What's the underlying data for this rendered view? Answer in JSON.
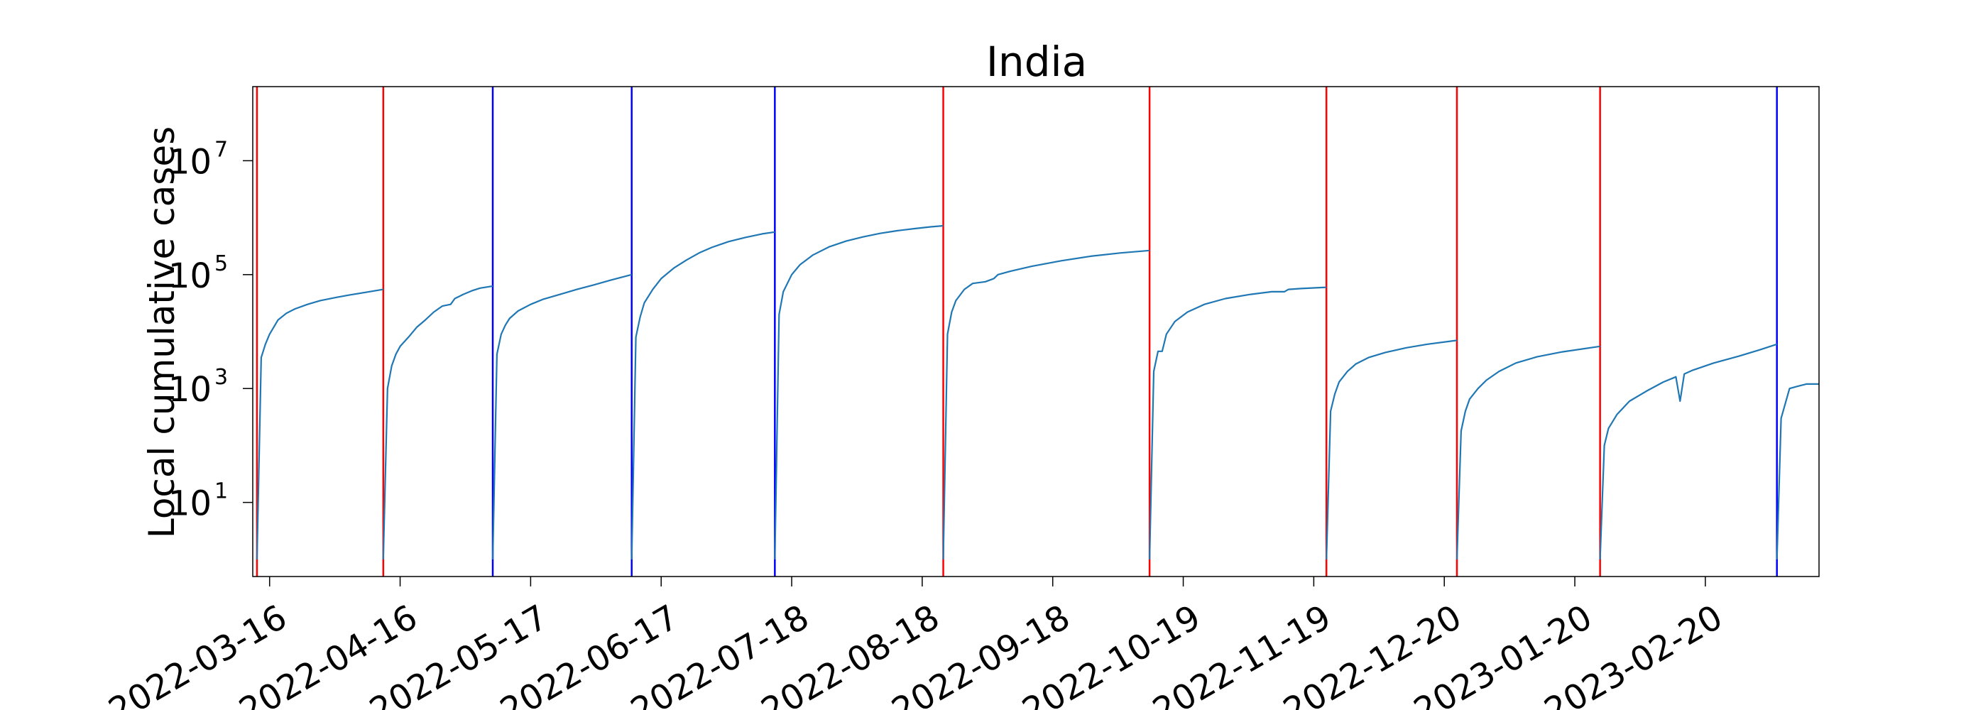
{
  "chart_data": {
    "type": "line",
    "title": "India",
    "xlabel": "",
    "ylabel": "Local cumulative cases",
    "y_scale": "log",
    "ylim": [
      0.5,
      200000000
    ],
    "xlim": [
      "2022-03-12",
      "2023-03-19"
    ],
    "grid": false,
    "legend": "none",
    "y_ticks": [
      {
        "value": 10,
        "base": "10",
        "exp": "1"
      },
      {
        "value": 1000,
        "base": "10",
        "exp": "3"
      },
      {
        "value": 100000,
        "base": "10",
        "exp": "5"
      },
      {
        "value": 10000000,
        "base": "10",
        "exp": "7"
      }
    ],
    "x_ticks": [
      "2022-03-16",
      "2022-04-16",
      "2022-05-17",
      "2022-06-17",
      "2022-07-18",
      "2022-08-18",
      "2022-09-18",
      "2022-10-19",
      "2022-11-19",
      "2022-12-20",
      "2023-01-20",
      "2023-02-20"
    ],
    "colors": {
      "line": "#1f77b4",
      "red": "#ff0000",
      "blue": "#0000ff",
      "axis": "#000000"
    },
    "vertical_lines": [
      {
        "date": "2022-03-13",
        "color": "#ff0000"
      },
      {
        "date": "2022-04-12",
        "color": "#ff0000"
      },
      {
        "date": "2022-05-08",
        "color": "#0000ff"
      },
      {
        "date": "2022-06-10",
        "color": "#0000ff"
      },
      {
        "date": "2022-07-14",
        "color": "#0000ff"
      },
      {
        "date": "2022-08-23",
        "color": "#ff0000"
      },
      {
        "date": "2022-10-11",
        "color": "#ff0000"
      },
      {
        "date": "2022-11-22",
        "color": "#ff0000"
      },
      {
        "date": "2022-12-23",
        "color": "#ff0000"
      },
      {
        "date": "2023-01-26",
        "color": "#ff0000"
      },
      {
        "date": "2023-03-09",
        "color": "#0000ff"
      }
    ],
    "series": [
      {
        "segments": [
          {
            "x": [
              "2022-03-12",
              "2022-03-12"
            ],
            "y": [
              300000,
              300000
            ]
          },
          {
            "x": [
              "2022-03-13",
              "2022-03-14",
              "2022-03-15",
              "2022-03-16",
              "2022-03-17",
              "2022-03-18",
              "2022-03-20",
              "2022-03-22",
              "2022-03-25",
              "2022-03-28",
              "2022-04-01",
              "2022-04-04",
              "2022-04-08",
              "2022-04-12"
            ],
            "y": [
              1,
              3500,
              6000,
              9000,
              12000,
              16000,
              21000,
              25000,
              30000,
              35000,
              40000,
              44000,
              49000,
              55000
            ]
          },
          {
            "x": [
              "2022-04-12",
              "2022-04-13",
              "2022-04-14",
              "2022-04-15",
              "2022-04-16",
              "2022-04-18",
              "2022-04-20",
              "2022-04-22",
              "2022-04-24",
              "2022-04-26",
              "2022-04-28",
              "2022-04-29",
              "2022-05-01",
              "2022-05-03",
              "2022-05-05",
              "2022-05-08"
            ],
            "y": [
              1,
              1000,
              2500,
              4000,
              5500,
              8000,
              12000,
              16000,
              22000,
              28000,
              30000,
              38000,
              45000,
              52000,
              58000,
              63000
            ]
          },
          {
            "x": [
              "2022-05-08",
              "2022-05-09",
              "2022-05-10",
              "2022-05-11",
              "2022-05-12",
              "2022-05-14",
              "2022-05-17",
              "2022-05-20",
              "2022-05-24",
              "2022-05-28",
              "2022-06-01",
              "2022-06-05",
              "2022-06-10"
            ],
            "y": [
              1,
              4000,
              9000,
              13000,
              17000,
              23000,
              30000,
              37000,
              45000,
              55000,
              66000,
              80000,
              100000
            ]
          },
          {
            "x": [
              "2022-06-10",
              "2022-06-11",
              "2022-06-12",
              "2022-06-13",
              "2022-06-15",
              "2022-06-17",
              "2022-06-20",
              "2022-06-23",
              "2022-06-26",
              "2022-06-29",
              "2022-07-03",
              "2022-07-07",
              "2022-07-11",
              "2022-07-14"
            ],
            "y": [
              1,
              8000,
              18000,
              32000,
              55000,
              85000,
              130000,
              180000,
              240000,
              300000,
              380000,
              450000,
              520000,
              560000
            ]
          },
          {
            "x": [
              "2022-07-14",
              "2022-07-15",
              "2022-07-16",
              "2022-07-18",
              "2022-07-20",
              "2022-07-23",
              "2022-07-27",
              "2022-07-31",
              "2022-08-04",
              "2022-08-08",
              "2022-08-12",
              "2022-08-16",
              "2022-08-20",
              "2022-08-23"
            ],
            "y": [
              1,
              20000,
              50000,
              100000,
              150000,
              220000,
              310000,
              390000,
              460000,
              530000,
              590000,
              640000,
              690000,
              720000
            ]
          },
          {
            "x": [
              "2022-08-23",
              "2022-08-24",
              "2022-08-25",
              "2022-08-26",
              "2022-08-28",
              "2022-08-30",
              "2022-09-02",
              "2022-09-04",
              "2022-09-05",
              "2022-09-08",
              "2022-09-13",
              "2022-09-20",
              "2022-09-27",
              "2022-10-04",
              "2022-10-11"
            ],
            "y": [
              1,
              9000,
              22000,
              35000,
              55000,
              70000,
              75000,
              85000,
              100000,
              115000,
              140000,
              175000,
              210000,
              240000,
              265000
            ]
          },
          {
            "x": [
              "2022-10-11",
              "2022-10-12",
              "2022-10-13",
              "2022-10-14",
              "2022-10-15",
              "2022-10-17",
              "2022-10-20",
              "2022-10-24",
              "2022-10-29",
              "2022-11-04",
              "2022-11-09",
              "2022-11-12",
              "2022-11-13",
              "2022-11-16",
              "2022-11-22"
            ],
            "y": [
              1,
              2000,
              4500,
              4500,
              9000,
              15000,
              22000,
              30000,
              38000,
              45000,
              50000,
              50000,
              55000,
              57000,
              60000
            ]
          },
          {
            "x": [
              "2022-11-22",
              "2022-11-23",
              "2022-11-24",
              "2022-11-25",
              "2022-11-27",
              "2022-11-29",
              "2022-12-02",
              "2022-12-06",
              "2022-12-11",
              "2022-12-16",
              "2022-12-23"
            ],
            "y": [
              1,
              400,
              800,
              1300,
              2000,
              2700,
              3500,
              4300,
              5200,
              6000,
              7000
            ]
          },
          {
            "x": [
              "2022-12-23",
              "2022-12-24",
              "2022-12-25",
              "2022-12-26",
              "2022-12-28",
              "2022-12-30",
              "2023-01-02",
              "2023-01-06",
              "2023-01-11",
              "2023-01-17",
              "2023-01-26"
            ],
            "y": [
              1,
              180,
              400,
              650,
              1000,
              1400,
              2000,
              2800,
              3600,
              4400,
              5500
            ]
          },
          {
            "x": [
              "2023-01-26",
              "2023-01-27",
              "2023-01-28",
              "2023-01-30",
              "2023-02-02",
              "2023-02-06",
              "2023-02-10",
              "2023-02-13",
              "2023-02-14",
              "2023-02-15",
              "2023-02-17",
              "2023-02-22",
              "2023-02-28",
              "2023-03-05",
              "2023-03-09"
            ],
            "y": [
              1,
              100,
              200,
              350,
              600,
              900,
              1300,
              1600,
              600,
              1800,
              2100,
              2800,
              3700,
              4800,
              6000
            ]
          },
          {
            "x": [
              "2023-03-09",
              "2023-03-10",
              "2023-03-12",
              "2023-03-14",
              "2023-03-16",
              "2023-03-19"
            ],
            "y": [
              1,
              300,
              1000,
              1100,
              1200,
              1200
            ]
          }
        ]
      }
    ]
  }
}
